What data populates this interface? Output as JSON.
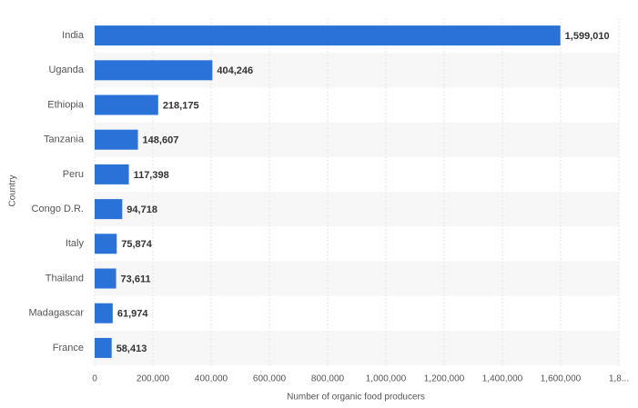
{
  "chart_data": {
    "type": "barh",
    "ylabel": "Country",
    "xlabel": "Number of organic food producers",
    "categories": [
      "India",
      "Uganda",
      "Ethiopia",
      "Tanzania",
      "Peru",
      "Congo D.R.",
      "Italy",
      "Thailand",
      "Madagascar",
      "France"
    ],
    "values": [
      1599010,
      404246,
      218175,
      148607,
      117398,
      94718,
      75874,
      73611,
      61974,
      58413
    ],
    "value_labels": [
      "1,599,010",
      "404,246",
      "218,175",
      "148,607",
      "117,398",
      "94,718",
      "75,874",
      "73,611",
      "61,974",
      "58,413"
    ],
    "color": "#2a72d8",
    "xlim": [
      0,
      1800000
    ],
    "xticks": [
      0,
      {
        "value": 200000,
        "label": "200,000"
      },
      {
        "value": 400000,
        "label": "400,000"
      },
      {
        "value": 600000,
        "label": "600,000"
      },
      {
        "value": 800000,
        "label": "800,000"
      },
      {
        "value": 1000000,
        "label": "1,000,000"
      },
      {
        "value": 1200000,
        "label": "1,200,000"
      },
      {
        "value": 1400000,
        "label": "1,400,000"
      },
      {
        "value": 1600000,
        "label": "1,600,000"
      },
      {
        "value": 1800000,
        "label": "1,8..."
      }
    ],
    "grid": true
  }
}
